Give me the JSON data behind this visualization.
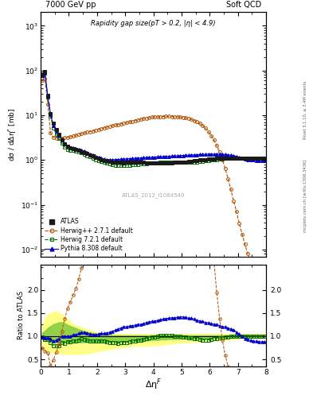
{
  "title_left": "7000 GeV pp",
  "title_right": "Soft QCD",
  "inner_title": "Rapidity gap size(pT > 0.2, |η| < 4.9)",
  "watermark": "ATLAS_2012_I1084540",
  "right_label": "mcplots.cern.ch [arXiv:1306.3436]",
  "right_label2": "Rivet 3.1.10, ≥ 3.4M events",
  "ylabel_main": "dσ / dΔη$^F$ [mb]",
  "ylabel_ratio": "Ratio to ATLAS",
  "xlabel": "Δη$^F$",
  "xlim": [
    0,
    8
  ],
  "ylim_main_log": [
    0.007,
    2000
  ],
  "ylim_ratio": [
    0.35,
    2.55
  ],
  "atlas_x": [
    0.05,
    0.15,
    0.25,
    0.35,
    0.45,
    0.55,
    0.65,
    0.75,
    0.85,
    0.95,
    1.05,
    1.15,
    1.25,
    1.35,
    1.45,
    1.55,
    1.65,
    1.75,
    1.85,
    1.95,
    2.05,
    2.15,
    2.25,
    2.35,
    2.45,
    2.55,
    2.65,
    2.75,
    2.85,
    2.95,
    3.05,
    3.15,
    3.25,
    3.35,
    3.45,
    3.55,
    3.65,
    3.75,
    3.85,
    3.95,
    4.05,
    4.15,
    4.25,
    4.35,
    4.45,
    4.55,
    4.65,
    4.75,
    4.85,
    4.95,
    5.05,
    5.15,
    5.25,
    5.35,
    5.45,
    5.55,
    5.65,
    5.75,
    5.85,
    5.95,
    6.05,
    6.15,
    6.25,
    6.35,
    6.45,
    6.55,
    6.65,
    6.75,
    6.85,
    6.95,
    7.05,
    7.15,
    7.25,
    7.35,
    7.45,
    7.55,
    7.65,
    7.75,
    7.85,
    7.95
  ],
  "atlas_y": [
    80,
    95,
    28,
    11,
    6.5,
    4.8,
    3.8,
    2.8,
    2.3,
    2.0,
    1.9,
    1.8,
    1.75,
    1.65,
    1.55,
    1.45,
    1.38,
    1.3,
    1.22,
    1.15,
    1.08,
    1.02,
    0.98,
    0.95,
    0.93,
    0.91,
    0.9,
    0.89,
    0.88,
    0.87,
    0.88,
    0.88,
    0.88,
    0.88,
    0.88,
    0.88,
    0.88,
    0.87,
    0.87,
    0.87,
    0.87,
    0.87,
    0.87,
    0.87,
    0.87,
    0.87,
    0.87,
    0.88,
    0.88,
    0.88,
    0.89,
    0.9,
    0.92,
    0.93,
    0.95,
    0.97,
    0.99,
    1.01,
    1.03,
    1.05,
    1.06,
    1.07,
    1.08,
    1.09,
    1.1,
    1.1,
    1.1,
    1.1,
    1.1,
    1.1,
    1.1,
    1.1,
    1.1,
    1.1,
    1.1,
    1.1,
    1.1,
    1.1,
    1.1,
    1.1
  ],
  "herwig271_x": [
    0.05,
    0.15,
    0.25,
    0.35,
    0.45,
    0.55,
    0.65,
    0.75,
    0.85,
    0.95,
    1.05,
    1.15,
    1.25,
    1.35,
    1.45,
    1.55,
    1.65,
    1.75,
    1.85,
    1.95,
    2.05,
    2.15,
    2.25,
    2.35,
    2.45,
    2.55,
    2.65,
    2.75,
    2.85,
    2.95,
    3.05,
    3.15,
    3.25,
    3.35,
    3.45,
    3.55,
    3.65,
    3.75,
    3.85,
    3.95,
    4.05,
    4.15,
    4.25,
    4.35,
    4.45,
    4.55,
    4.65,
    4.75,
    4.85,
    4.95,
    5.05,
    5.15,
    5.25,
    5.35,
    5.45,
    5.55,
    5.65,
    5.75,
    5.85,
    5.95,
    6.05,
    6.15,
    6.25,
    6.35,
    6.45,
    6.55,
    6.65,
    6.75,
    6.85,
    6.95,
    7.05,
    7.15,
    7.25,
    7.35,
    7.45,
    7.55,
    7.65,
    7.75,
    7.85,
    7.95
  ],
  "herwig271_y": [
    60,
    65,
    18,
    4.0,
    3.2,
    3.1,
    3.1,
    3.1,
    3.15,
    3.2,
    3.3,
    3.4,
    3.55,
    3.7,
    3.85,
    4.0,
    4.15,
    4.3,
    4.45,
    4.6,
    4.8,
    5.0,
    5.2,
    5.4,
    5.6,
    5.8,
    6.0,
    6.2,
    6.4,
    6.6,
    6.8,
    7.1,
    7.3,
    7.6,
    7.8,
    8.1,
    8.4,
    8.6,
    8.8,
    9.0,
    9.1,
    9.2,
    9.3,
    9.35,
    9.4,
    9.4,
    9.35,
    9.3,
    9.2,
    9.1,
    8.9,
    8.7,
    8.4,
    8.0,
    7.6,
    7.1,
    6.5,
    5.85,
    5.1,
    4.3,
    3.5,
    2.8,
    2.1,
    1.5,
    1.0,
    0.65,
    0.38,
    0.22,
    0.12,
    0.07,
    0.038,
    0.022,
    0.013,
    0.008,
    0.006,
    0.005,
    0.005,
    0.005,
    0.005,
    0.005
  ],
  "herwig721_x": [
    0.05,
    0.15,
    0.25,
    0.35,
    0.45,
    0.55,
    0.65,
    0.75,
    0.85,
    0.95,
    1.05,
    1.15,
    1.25,
    1.35,
    1.45,
    1.55,
    1.65,
    1.75,
    1.85,
    1.95,
    2.05,
    2.15,
    2.25,
    2.35,
    2.45,
    2.55,
    2.65,
    2.75,
    2.85,
    2.95,
    3.05,
    3.15,
    3.25,
    3.35,
    3.45,
    3.55,
    3.65,
    3.75,
    3.85,
    3.95,
    4.05,
    4.15,
    4.25,
    4.35,
    4.45,
    4.55,
    4.65,
    4.75,
    4.85,
    4.95,
    5.05,
    5.15,
    5.25,
    5.35,
    5.45,
    5.55,
    5.65,
    5.75,
    5.85,
    5.95,
    6.05,
    6.15,
    6.25,
    6.35,
    6.45,
    6.55,
    6.65,
    6.75,
    6.85,
    6.95,
    7.05,
    7.15,
    7.25,
    7.35,
    7.45,
    7.55,
    7.65,
    7.75,
    7.85,
    7.95
  ],
  "herwig721_y": [
    78,
    88,
    26,
    9.5,
    5.2,
    3.8,
    3.0,
    2.4,
    1.95,
    1.75,
    1.68,
    1.62,
    1.58,
    1.52,
    1.45,
    1.35,
    1.26,
    1.17,
    1.09,
    1.02,
    0.97,
    0.92,
    0.88,
    0.84,
    0.81,
    0.79,
    0.77,
    0.76,
    0.76,
    0.76,
    0.76,
    0.77,
    0.78,
    0.79,
    0.8,
    0.81,
    0.82,
    0.83,
    0.84,
    0.85,
    0.86,
    0.87,
    0.88,
    0.88,
    0.88,
    0.88,
    0.88,
    0.88,
    0.88,
    0.88,
    0.88,
    0.88,
    0.88,
    0.89,
    0.9,
    0.91,
    0.92,
    0.93,
    0.95,
    0.97,
    0.99,
    1.01,
    1.03,
    1.05,
    1.07,
    1.08,
    1.09,
    1.1,
    1.1,
    1.1,
    1.1,
    1.1,
    1.1,
    1.1,
    1.1,
    1.1,
    1.1,
    1.1,
    1.1,
    1.1
  ],
  "pythia_x": [
    0.05,
    0.15,
    0.25,
    0.35,
    0.45,
    0.55,
    0.65,
    0.75,
    0.85,
    0.95,
    1.05,
    1.15,
    1.25,
    1.35,
    1.45,
    1.55,
    1.65,
    1.75,
    1.85,
    1.95,
    2.05,
    2.15,
    2.25,
    2.35,
    2.45,
    2.55,
    2.65,
    2.75,
    2.85,
    2.95,
    3.05,
    3.15,
    3.25,
    3.35,
    3.45,
    3.55,
    3.65,
    3.75,
    3.85,
    3.95,
    4.05,
    4.15,
    4.25,
    4.35,
    4.45,
    4.55,
    4.65,
    4.75,
    4.85,
    4.95,
    5.05,
    5.15,
    5.25,
    5.35,
    5.45,
    5.55,
    5.65,
    5.75,
    5.85,
    5.95,
    6.05,
    6.15,
    6.25,
    6.35,
    6.45,
    6.55,
    6.65,
    6.75,
    6.85,
    6.95,
    7.05,
    7.15,
    7.25,
    7.35,
    7.45,
    7.55,
    7.65,
    7.75,
    7.85,
    7.95
  ],
  "pythia_y": [
    78,
    92,
    27,
    10.5,
    5.8,
    4.4,
    3.6,
    2.8,
    2.3,
    2.0,
    1.9,
    1.85,
    1.8,
    1.75,
    1.67,
    1.57,
    1.47,
    1.37,
    1.27,
    1.19,
    1.13,
    1.08,
    1.04,
    1.02,
    1.01,
    1.01,
    1.02,
    1.03,
    1.04,
    1.05,
    1.06,
    1.07,
    1.08,
    1.09,
    1.1,
    1.11,
    1.12,
    1.13,
    1.14,
    1.15,
    1.16,
    1.17,
    1.18,
    1.19,
    1.2,
    1.21,
    1.22,
    1.23,
    1.24,
    1.25,
    1.26,
    1.27,
    1.28,
    1.29,
    1.3,
    1.31,
    1.32,
    1.33,
    1.34,
    1.35,
    1.35,
    1.35,
    1.35,
    1.34,
    1.33,
    1.32,
    1.3,
    1.28,
    1.25,
    1.2,
    1.15,
    1.1,
    1.05,
    1.02,
    1.0,
    0.99,
    0.98,
    0.97,
    0.97,
    0.97
  ],
  "atlas_color": "#1a1a1a",
  "herwig271_color": "#b05000",
  "herwig721_color": "#007000",
  "pythia_color": "#0000cc",
  "ratio_herwig271": [
    0.75,
    0.68,
    0.64,
    0.36,
    0.49,
    0.65,
    0.82,
    1.11,
    1.37,
    1.6,
    1.74,
    1.89,
    2.03,
    2.24,
    2.48,
    2.76,
    3.01,
    3.31,
    3.65,
    4.0,
    4.44,
    4.9,
    5.31,
    5.68,
    6.02,
    6.37,
    6.67,
    6.97,
    7.27,
    7.59,
    7.73,
    8.07,
    8.3,
    8.64,
    8.86,
    9.2,
    9.55,
    9.89,
    10.11,
    10.34,
    10.46,
    10.57,
    10.69,
    10.75,
    10.8,
    10.8,
    10.75,
    10.57,
    10.45,
    10.34,
    10.0,
    9.67,
    9.13,
    8.6,
    8.0,
    7.32,
    6.57,
    5.79,
    4.95,
    4.1,
    3.3,
    2.62,
    1.94,
    1.38,
    0.91,
    0.59,
    0.35,
    0.2,
    0.11,
    0.064,
    0.035,
    0.02,
    0.012,
    0.007,
    0.005,
    0.005,
    0.005,
    0.005,
    0.005,
    0.005
  ],
  "ratio_herwig721": [
    0.98,
    0.93,
    0.93,
    0.86,
    0.8,
    0.79,
    0.79,
    0.86,
    0.85,
    0.88,
    0.88,
    0.9,
    0.9,
    0.92,
    0.94,
    0.93,
    0.91,
    0.9,
    0.89,
    0.89,
    0.9,
    0.9,
    0.9,
    0.88,
    0.87,
    0.87,
    0.86,
    0.85,
    0.86,
    0.87,
    0.86,
    0.88,
    0.89,
    0.9,
    0.91,
    0.92,
    0.93,
    0.95,
    0.97,
    0.98,
    0.99,
    1.0,
    1.01,
    1.01,
    1.01,
    1.01,
    1.01,
    1.0,
    1.0,
    1.0,
    0.99,
    0.98,
    0.96,
    0.96,
    0.95,
    0.94,
    0.93,
    0.92,
    0.92,
    0.92,
    0.93,
    0.94,
    0.95,
    0.96,
    0.97,
    0.98,
    0.99,
    1.0,
    1.0,
    1.0,
    1.0,
    1.0,
    1.0,
    1.0,
    1.0,
    1.0,
    1.0,
    1.0,
    1.0,
    1.0
  ],
  "ratio_pythia": [
    0.98,
    0.97,
    0.96,
    0.95,
    0.89,
    0.92,
    0.95,
    1.0,
    1.0,
    1.0,
    1.0,
    1.03,
    1.03,
    1.06,
    1.08,
    1.08,
    1.07,
    1.05,
    1.04,
    1.03,
    1.05,
    1.06,
    1.06,
    1.07,
    1.09,
    1.11,
    1.13,
    1.16,
    1.18,
    1.21,
    1.2,
    1.22,
    1.23,
    1.24,
    1.25,
    1.26,
    1.27,
    1.3,
    1.31,
    1.32,
    1.33,
    1.34,
    1.36,
    1.37,
    1.38,
    1.39,
    1.4,
    1.4,
    1.41,
    1.42,
    1.42,
    1.41,
    1.39,
    1.39,
    1.37,
    1.35,
    1.33,
    1.32,
    1.3,
    1.29,
    1.27,
    1.26,
    1.25,
    1.23,
    1.21,
    1.2,
    1.18,
    1.16,
    1.14,
    1.09,
    1.05,
    1.0,
    0.95,
    0.93,
    0.91,
    0.9,
    0.89,
    0.88,
    0.88,
    0.88
  ],
  "band_x": [
    0.05,
    0.15,
    0.25,
    0.35,
    0.45,
    0.55,
    0.65,
    0.75,
    0.85,
    0.95,
    1.05,
    1.15,
    1.25,
    1.35,
    1.45,
    1.55,
    1.65,
    1.75,
    1.85,
    1.95,
    2.05,
    2.15,
    2.25,
    2.35,
    2.45,
    2.55,
    2.65,
    2.75,
    2.85,
    2.95,
    3.05,
    3.15,
    3.25,
    3.35,
    3.45,
    3.55,
    3.65,
    3.75,
    3.85,
    3.95,
    4.05,
    4.15,
    4.25,
    4.35,
    4.45,
    4.55,
    4.65,
    4.75,
    4.85,
    4.95,
    5.05,
    5.15,
    5.25,
    5.35,
    5.45,
    5.55,
    5.65,
    5.75,
    5.85,
    5.95,
    6.05,
    6.15,
    6.25,
    6.35,
    6.45,
    6.55,
    6.65,
    6.75,
    6.85,
    6.95,
    7.05,
    7.15,
    7.25,
    7.35,
    7.45,
    7.55,
    7.65,
    7.75,
    7.85,
    7.95
  ],
  "ratio_band_green_lo": [
    0.93,
    0.9,
    0.89,
    0.88,
    0.88,
    0.87,
    0.87,
    0.87,
    0.87,
    0.87,
    0.87,
    0.87,
    0.87,
    0.87,
    0.87,
    0.87,
    0.87,
    0.87,
    0.87,
    0.87,
    0.87,
    0.88,
    0.88,
    0.88,
    0.88,
    0.89,
    0.89,
    0.89,
    0.89,
    0.89,
    0.89,
    0.89,
    0.89,
    0.9,
    0.9,
    0.9,
    0.9,
    0.91,
    0.91,
    0.92,
    0.92,
    0.92,
    0.93,
    0.93,
    0.93,
    0.94,
    0.94,
    0.94,
    0.94,
    0.94,
    0.95,
    0.95,
    0.95,
    0.95,
    0.95,
    0.95,
    0.96,
    0.96,
    0.96,
    0.96,
    0.97,
    0.97,
    0.97,
    0.97,
    0.97,
    0.97,
    0.97,
    0.98,
    0.98,
    0.98,
    0.98,
    0.98,
    0.99,
    0.99,
    0.99,
    0.99,
    0.99,
    0.99,
    0.99,
    0.99
  ],
  "ratio_band_green_hi": [
    1.07,
    1.12,
    1.18,
    1.22,
    1.26,
    1.28,
    1.3,
    1.3,
    1.28,
    1.25,
    1.22,
    1.2,
    1.17,
    1.15,
    1.13,
    1.11,
    1.09,
    1.08,
    1.07,
    1.06,
    1.05,
    1.04,
    1.03,
    1.03,
    1.03,
    1.02,
    1.02,
    1.02,
    1.02,
    1.02,
    1.02,
    1.02,
    1.02,
    1.02,
    1.02,
    1.02,
    1.02,
    1.02,
    1.02,
    1.02,
    1.02,
    1.02,
    1.02,
    1.02,
    1.02,
    1.02,
    1.02,
    1.02,
    1.02,
    1.02,
    1.02,
    1.02,
    1.02,
    1.02,
    1.02,
    1.02,
    1.02,
    1.02,
    1.02,
    1.02,
    1.02,
    1.02,
    1.02,
    1.02,
    1.02,
    1.02,
    1.02,
    1.02,
    1.02,
    1.02,
    1.02,
    1.02,
    1.02,
    1.02,
    1.02,
    1.02,
    1.02,
    1.02,
    1.02,
    1.02
  ],
  "ratio_band_yellow_lo": [
    0.78,
    0.7,
    0.68,
    0.66,
    0.64,
    0.63,
    0.63,
    0.62,
    0.62,
    0.62,
    0.62,
    0.62,
    0.62,
    0.62,
    0.62,
    0.63,
    0.63,
    0.64,
    0.65,
    0.66,
    0.68,
    0.69,
    0.7,
    0.71,
    0.72,
    0.73,
    0.74,
    0.75,
    0.76,
    0.77,
    0.77,
    0.78,
    0.79,
    0.79,
    0.79,
    0.79,
    0.79,
    0.79,
    0.8,
    0.8,
    0.8,
    0.81,
    0.81,
    0.82,
    0.83,
    0.84,
    0.84,
    0.85,
    0.86,
    0.86,
    0.86,
    0.87,
    0.87,
    0.87,
    0.88,
    0.88,
    0.88,
    0.89,
    0.89,
    0.9,
    0.9,
    0.91,
    0.91,
    0.92,
    0.92,
    0.93,
    0.93,
    0.94,
    0.94,
    0.95,
    0.95,
    0.96,
    0.96,
    0.97,
    0.97,
    0.97,
    0.97,
    0.97,
    0.97,
    0.97
  ],
  "ratio_band_yellow_hi": [
    1.22,
    1.38,
    1.46,
    1.5,
    1.53,
    1.53,
    1.51,
    1.47,
    1.42,
    1.37,
    1.32,
    1.27,
    1.23,
    1.21,
    1.19,
    1.17,
    1.15,
    1.13,
    1.11,
    1.09,
    1.07,
    1.06,
    1.05,
    1.05,
    1.05,
    1.05,
    1.05,
    1.05,
    1.05,
    1.05,
    1.05,
    1.05,
    1.05,
    1.05,
    1.05,
    1.05,
    1.05,
    1.05,
    1.05,
    1.05,
    1.05,
    1.05,
    1.05,
    1.05,
    1.05,
    1.05,
    1.05,
    1.05,
    1.05,
    1.05,
    1.05,
    1.05,
    1.05,
    1.05,
    1.05,
    1.05,
    1.05,
    1.05,
    1.05,
    1.05,
    1.05,
    1.05,
    1.05,
    1.05,
    1.05,
    1.05,
    1.05,
    1.05,
    1.05,
    1.05,
    1.05,
    1.05,
    1.05,
    1.05,
    1.05,
    1.05,
    1.05,
    1.05,
    1.05,
    1.05
  ]
}
